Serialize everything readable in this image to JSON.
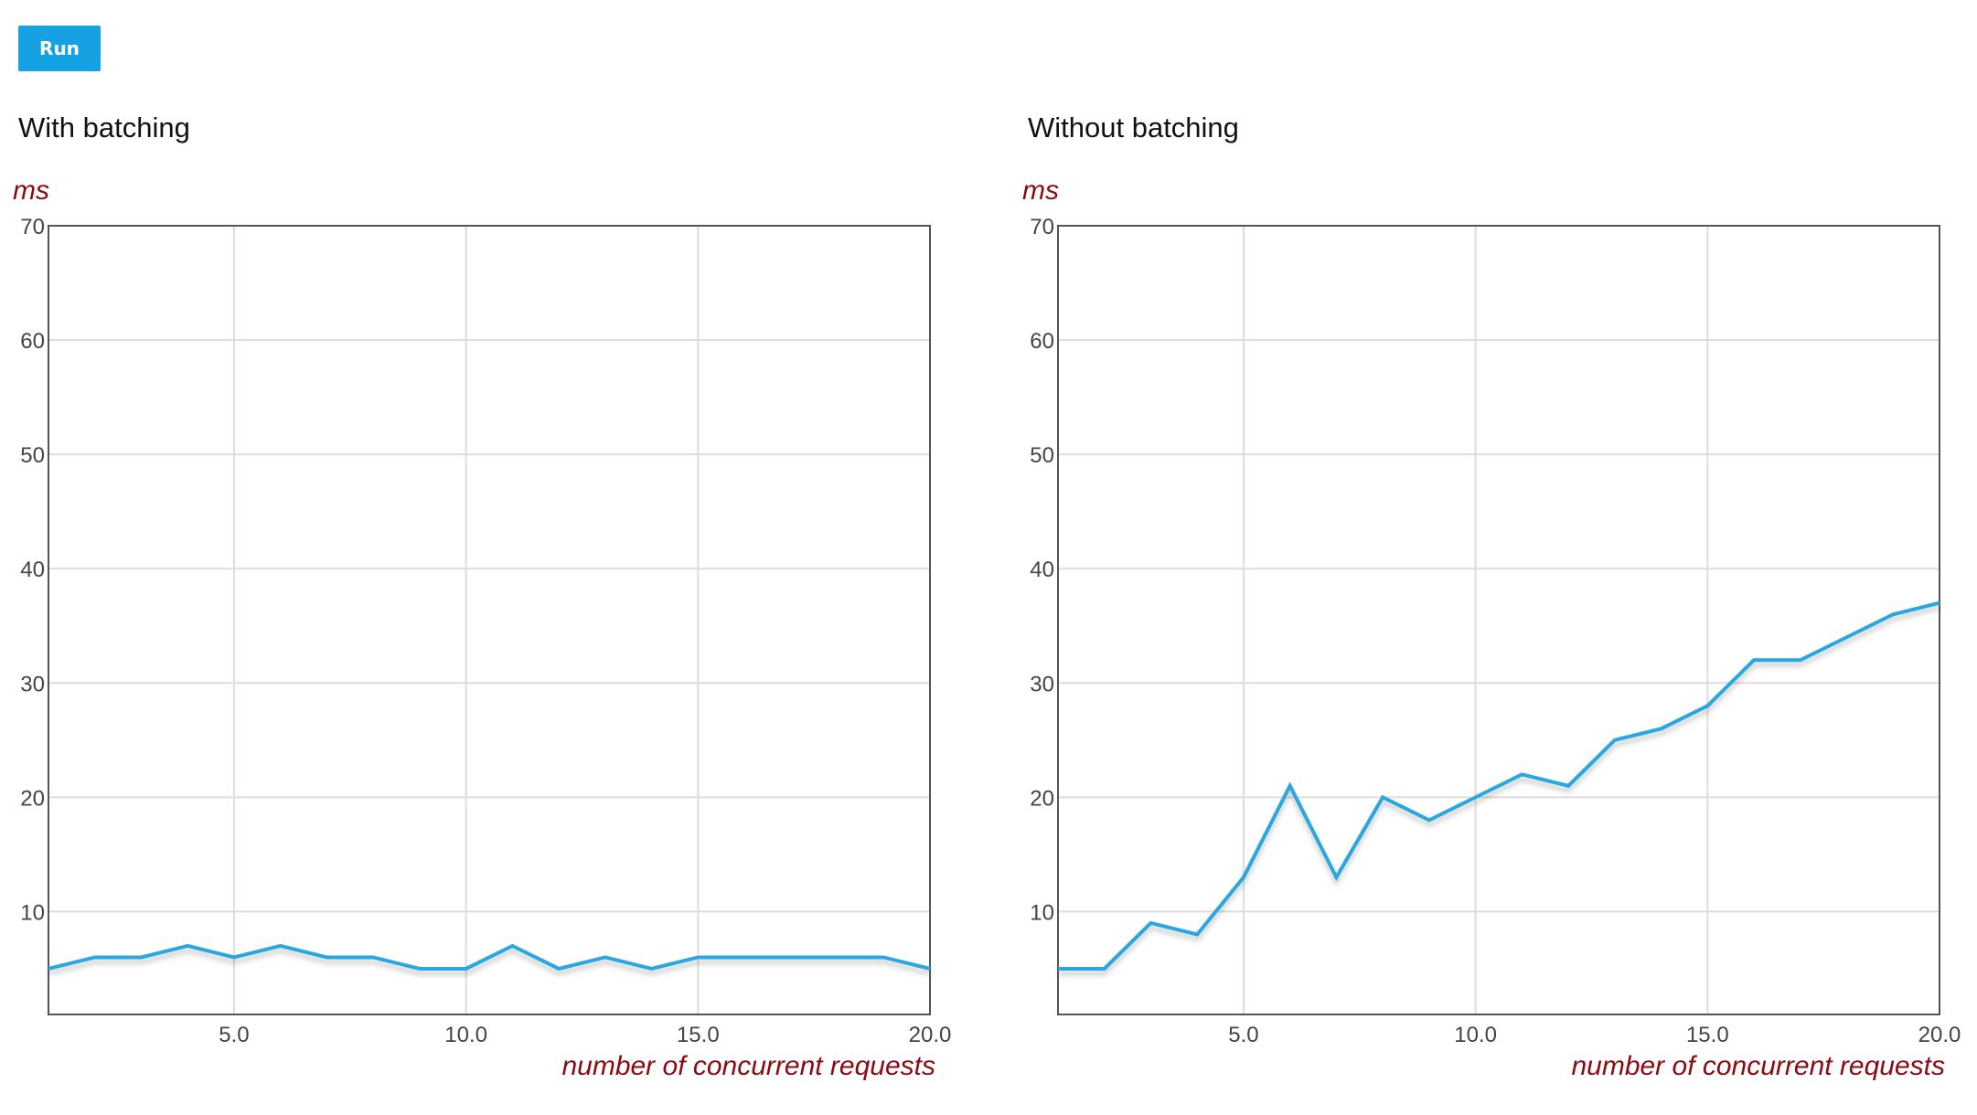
{
  "toolbar": {
    "run_label": "Run"
  },
  "colors": {
    "line": "#2aa7e0",
    "axis_label": "#8b0a12",
    "grid": "#dddddd",
    "frame": "#555555",
    "button": "#16a2e2"
  },
  "chart_data": [
    {
      "type": "line",
      "title": "With batching",
      "xlabel": "number of concurrent requests",
      "ylabel": "ms",
      "xlim": [
        1,
        20
      ],
      "ylim": [
        1,
        70
      ],
      "xticks": [
        5.0,
        10.0,
        15.0,
        20.0
      ],
      "xtick_labels": [
        "5.0",
        "10.0",
        "15.0",
        "20.0"
      ],
      "yticks": [
        10,
        20,
        30,
        40,
        50,
        60,
        70
      ],
      "ytick_labels": [
        "10",
        "20",
        "30",
        "40",
        "50",
        "60",
        "70"
      ],
      "grid": true,
      "x": [
        1,
        2,
        3,
        4,
        5,
        6,
        7,
        8,
        9,
        10,
        11,
        12,
        13,
        14,
        15,
        16,
        17,
        18,
        19,
        20
      ],
      "series": [
        {
          "values": [
            5,
            6,
            6,
            7,
            6,
            7,
            6,
            6,
            5,
            5,
            7,
            5,
            6,
            5,
            6,
            6,
            6,
            6,
            6,
            5
          ]
        }
      ]
    },
    {
      "type": "line",
      "title": "Without batching",
      "xlabel": "number of concurrent requests",
      "ylabel": "ms",
      "xlim": [
        1,
        20
      ],
      "ylim": [
        1,
        70
      ],
      "xticks": [
        5.0,
        10.0,
        15.0,
        20.0
      ],
      "xtick_labels": [
        "5.0",
        "10.0",
        "15.0",
        "20.0"
      ],
      "yticks": [
        10,
        20,
        30,
        40,
        50,
        60,
        70
      ],
      "ytick_labels": [
        "10",
        "20",
        "30",
        "40",
        "50",
        "60",
        "70"
      ],
      "grid": true,
      "x": [
        1,
        2,
        3,
        4,
        5,
        6,
        7,
        8,
        9,
        10,
        11,
        12,
        13,
        14,
        15,
        16,
        17,
        18,
        19,
        20
      ],
      "series": [
        {
          "values": [
            5,
            5,
            9,
            8,
            13,
            21,
            13,
            20,
            18,
            20,
            22,
            21,
            25,
            26,
            28,
            32,
            32,
            34,
            36,
            37
          ]
        }
      ]
    }
  ]
}
